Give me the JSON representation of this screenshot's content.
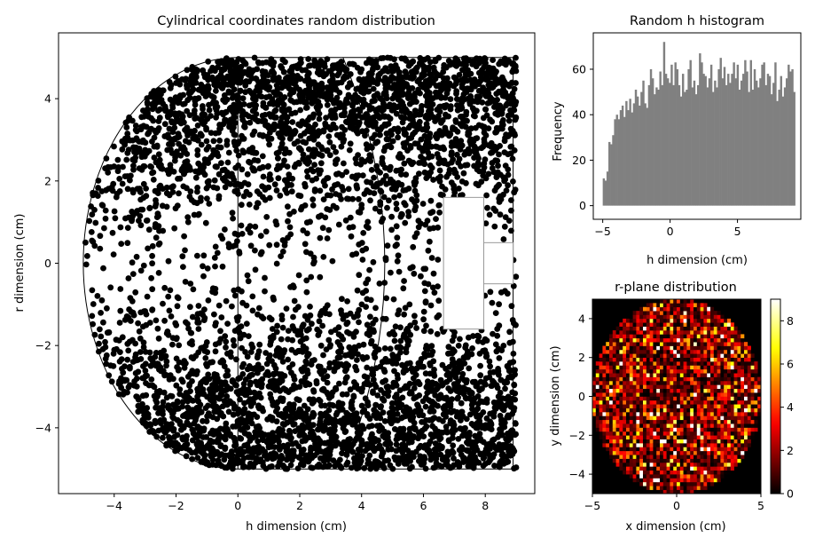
{
  "chart_data": [
    {
      "type": "scatter",
      "title": "Cylindrical coordinates random distribution",
      "xlabel": "h dimension (cm)",
      "ylabel": "r dimension (cm)",
      "xlim": [
        -5.8,
        9.6
      ],
      "ylim": [
        -5.6,
        5.6
      ],
      "xticks": [
        -4,
        -2,
        0,
        2,
        4,
        6,
        8
      ],
      "yticks": [
        -4,
        -2,
        0,
        2,
        4
      ],
      "marker_color": "#000000",
      "n_points_approx": 5000,
      "density_by_abs_r": [
        [
          0,
          0.08
        ],
        [
          0.6,
          0.12
        ],
        [
          1.5,
          0.3
        ],
        [
          2.5,
          0.5
        ],
        [
          3.5,
          0.8
        ],
        [
          4.5,
          1.0
        ],
        [
          5.0,
          1.0
        ]
      ],
      "point_extent": {
        "h": [
          -5,
          9
        ],
        "r": [
          -5,
          5
        ]
      },
      "outline": {
        "hemisphere_center_h": 0,
        "hemisphere_radius": 5,
        "cylinder_h": [
          0,
          8.9
        ],
        "cylinder_r": [
          -5,
          5
        ],
        "inner_arc_h": 5
      },
      "insert_rects": [
        {
          "h": [
            6.65,
            7.95
          ],
          "r": [
            -1.6,
            1.6
          ]
        },
        {
          "h": [
            7.95,
            8.9
          ],
          "r": [
            -0.5,
            0.5
          ]
        }
      ],
      "grid": false
    },
    {
      "type": "bar",
      "title": "Random h histogram",
      "xlabel": "h dimension (cm)",
      "ylabel": "Frequency",
      "xlim": [
        -5.7,
        9.7
      ],
      "ylim": [
        -6,
        76
      ],
      "xticks": [
        -5,
        0,
        5
      ],
      "yticks": [
        0,
        20,
        40,
        60
      ],
      "bar_color": "#808080",
      "bin_start": -5,
      "bin_width": 0.14,
      "values": [
        12,
        11,
        15,
        28,
        27,
        31,
        38,
        40,
        38,
        42,
        44,
        39,
        46,
        42,
        47,
        41,
        45,
        51,
        48,
        44,
        50,
        55,
        45,
        43,
        53,
        60,
        56,
        49,
        52,
        51,
        59,
        53,
        72,
        58,
        56,
        54,
        62,
        53,
        63,
        60,
        53,
        48,
        58,
        50,
        51,
        60,
        64,
        52,
        55,
        49,
        53,
        67,
        63,
        58,
        57,
        52,
        56,
        62,
        50,
        55,
        52,
        60,
        65,
        56,
        61,
        53,
        58,
        54,
        58,
        63,
        56,
        62,
        51,
        55,
        58,
        64,
        59,
        50,
        64,
        51,
        60,
        55,
        52,
        56,
        62,
        63,
        53,
        58,
        57,
        49,
        54,
        63,
        46,
        51,
        57,
        48,
        52,
        56,
        62,
        59,
        60,
        50
      ],
      "grid": false
    },
    {
      "type": "heatmap",
      "title": "r-plane distribution",
      "xlabel": "x dimension (cm)",
      "ylabel": "y dimension (cm)",
      "xlim": [
        -5,
        5
      ],
      "ylim": [
        -5,
        5
      ],
      "xticks": [
        -5,
        0,
        5
      ],
      "yticks": [
        -4,
        -2,
        0,
        2,
        4
      ],
      "grid_size": 50,
      "region": "disk radius 5",
      "value_range": [
        0,
        9
      ],
      "colormap": "hot",
      "colorbar_ticks": [
        0,
        2,
        4,
        6,
        8
      ]
    }
  ]
}
